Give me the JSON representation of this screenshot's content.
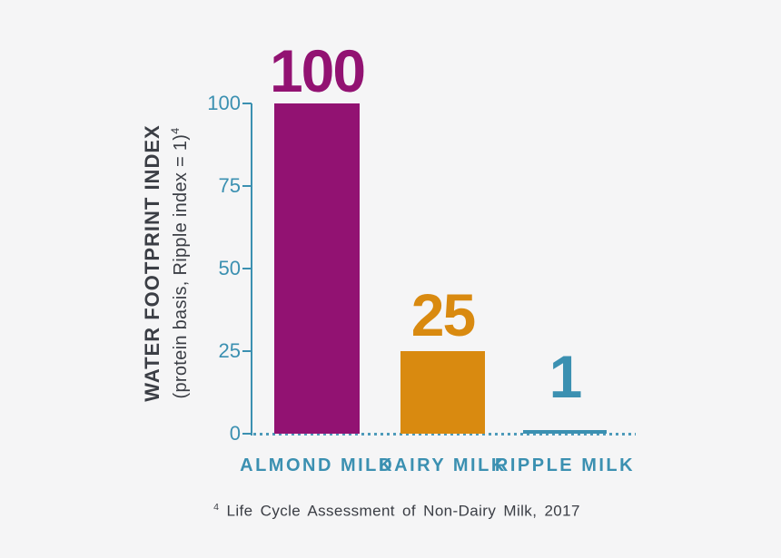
{
  "page": {
    "background_color": "#F5F5F6"
  },
  "chart_data": {
    "type": "bar",
    "title": "",
    "y_axis": {
      "label_line1": "WATER FOOTPRINT INDEX",
      "label_line2": "(protein basis, Ripple index = 1)",
      "label_line2_superscript": "4",
      "ticks": [
        100,
        75,
        50,
        25,
        0
      ],
      "range": [
        0,
        100
      ],
      "axis_color": "#3B90B1"
    },
    "categories": [
      "ALMOND MILK",
      "DAIRY MILK",
      "RIPPLE MILK"
    ],
    "values": [
      100,
      25,
      1
    ],
    "value_labels": [
      "100",
      "25",
      "1"
    ],
    "colors": [
      "#921272",
      "#D98A10",
      "#3B90B1"
    ],
    "baseline_style": "dotted",
    "legend": "none",
    "grid": "off",
    "footnote": {
      "superscript": "4",
      "text": "Life Cycle Assessment of Non-Dairy Milk, 2017"
    }
  }
}
